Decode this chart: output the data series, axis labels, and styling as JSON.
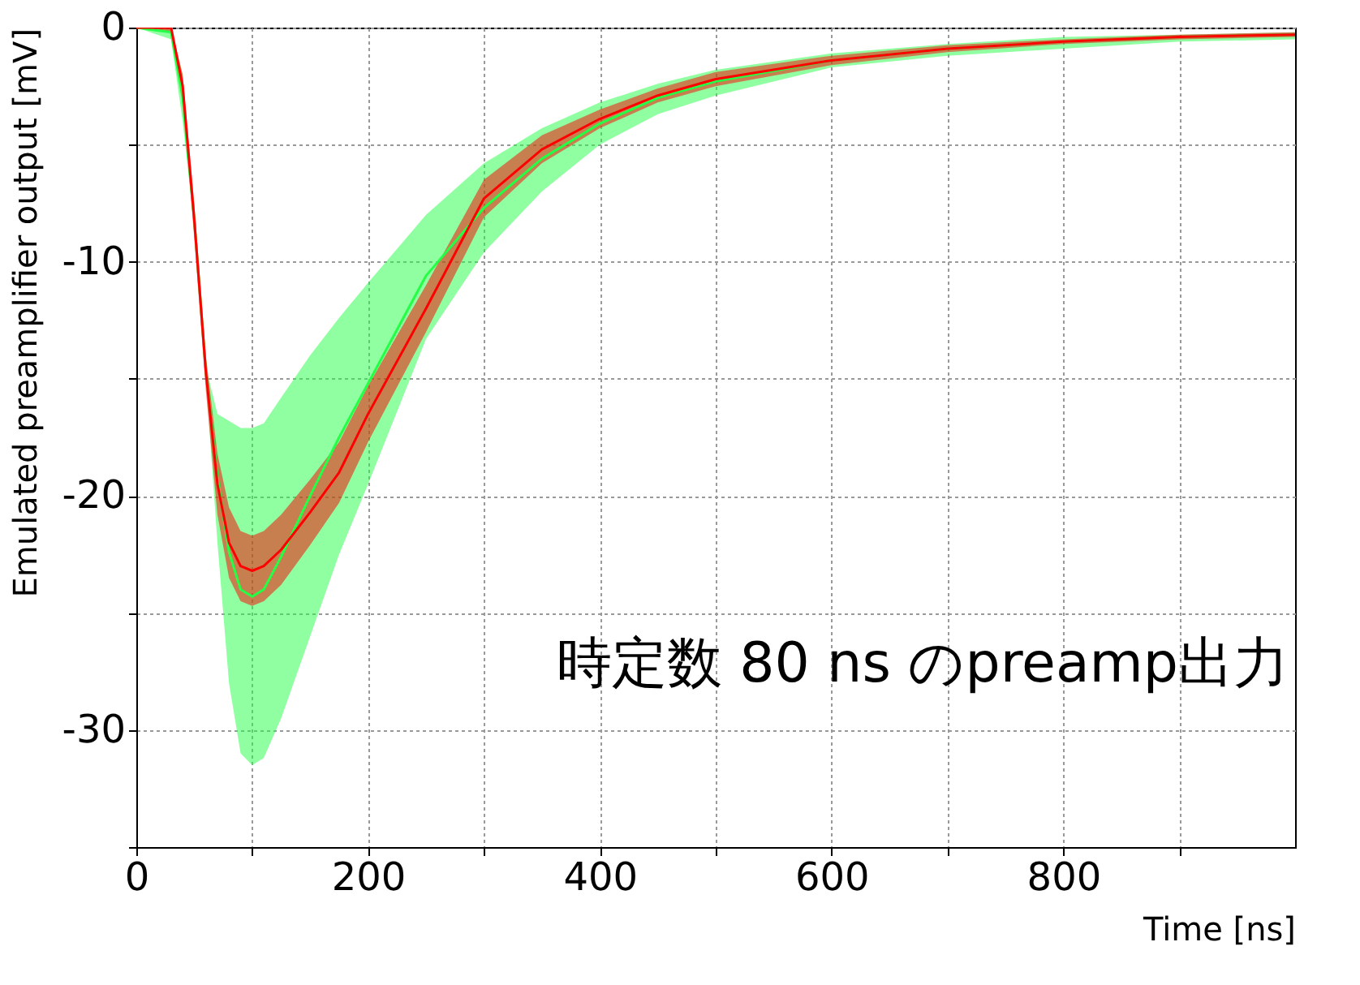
{
  "chart_data": {
    "type": "line",
    "xlabel": "Time [ns]",
    "ylabel": "Emulated preamplifier output [mV]",
    "x": [
      0,
      30,
      40,
      50,
      60,
      70,
      80,
      90,
      100,
      110,
      125,
      150,
      175,
      200,
      250,
      300,
      350,
      400,
      450,
      500,
      600,
      700,
      800,
      900,
      1000
    ],
    "series": [
      {
        "color": "#22ff44",
        "values": [
          0,
          -0.2,
          -3,
          -8.2,
          -14.7,
          -19.2,
          -22.4,
          -24,
          -24.3,
          -24,
          -22.6,
          -20,
          -17.5,
          -15.2,
          -10.6,
          -7.7,
          -5.6,
          -4.1,
          -3,
          -2.3,
          -1.4,
          -0.9,
          -0.6,
          -0.4,
          -0.3
        ],
        "lower": [
          0,
          -0.5,
          -4,
          -8.5,
          -15,
          -22,
          -28,
          -31,
          -31.5,
          -31.2,
          -29.5,
          -26,
          -22.5,
          -19.5,
          -13.3,
          -9.6,
          -7,
          -5,
          -3.7,
          -2.9,
          -1.7,
          -1.2,
          -0.9,
          -0.6,
          -0.5
        ],
        "upper": [
          0,
          0,
          -2,
          -8,
          -14.5,
          -16.5,
          -16.8,
          -17.1,
          -17.1,
          -16.9,
          -15.8,
          -14,
          -12.4,
          -10.9,
          -8,
          -5.8,
          -4.3,
          -3.2,
          -2.4,
          -1.8,
          -1.1,
          -0.7,
          -0.4,
          -0.3,
          -0.2
        ]
      },
      {
        "color": "#ff0000",
        "values": [
          0,
          0,
          -2.5,
          -8.2,
          -14.7,
          -19.5,
          -22,
          -23,
          -23.2,
          -23,
          -22.3,
          -20.7,
          -19,
          -16.5,
          -12,
          -7.3,
          -5.2,
          -3.9,
          -2.9,
          -2.2,
          -1.4,
          -0.9,
          -0.6,
          -0.4,
          -0.3
        ],
        "lower": [
          0,
          -0.2,
          -3,
          -9,
          -15.5,
          -20.8,
          -23.5,
          -24.5,
          -24.7,
          -24.5,
          -23.8,
          -22.1,
          -20.3,
          -17.7,
          -13,
          -8.1,
          -5.8,
          -4.3,
          -3.2,
          -2.5,
          -1.6,
          -1.05,
          -0.7,
          -0.5,
          -0.4
        ],
        "upper": [
          0,
          0,
          -2,
          -7.5,
          -14,
          -18.2,
          -20.5,
          -21.5,
          -21.7,
          -21.5,
          -20.8,
          -19.3,
          -17.7,
          -15.3,
          -11,
          -6.5,
          -4.6,
          -3.5,
          -2.6,
          -1.9,
          -1.2,
          -0.75,
          -0.5,
          -0.3,
          -0.2
        ]
      }
    ],
    "xlim": [
      0,
      1000
    ],
    "ylim": [
      -35,
      0
    ],
    "xticks": [
      0,
      {
        "value": 100,
        "label": null
      },
      200,
      {
        "value": 300,
        "label": null
      },
      400,
      {
        "value": 500,
        "label": null
      },
      600,
      {
        "value": 700,
        "label": null
      },
      800,
      {
        "value": 900,
        "label": null
      }
    ],
    "yticks": [
      {
        "value": -35,
        "label": null
      },
      -30,
      {
        "value": -25,
        "label": null
      },
      -20,
      {
        "value": -15,
        "label": null
      },
      -10,
      {
        "value": -5,
        "label": null
      },
      0
    ],
    "grid": true,
    "legend": false,
    "annotations": [
      "時定数 80 ns のpreamp出力"
    ]
  }
}
